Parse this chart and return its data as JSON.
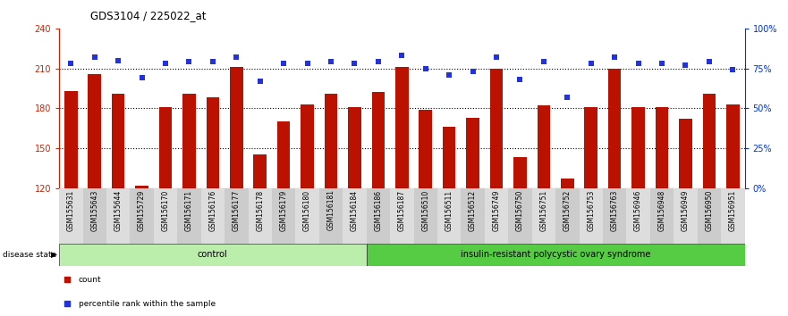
{
  "title": "GDS3104 / 225022_at",
  "samples": [
    "GSM155631",
    "GSM155643",
    "GSM155644",
    "GSM155729",
    "GSM156170",
    "GSM156171",
    "GSM156176",
    "GSM156177",
    "GSM156178",
    "GSM156179",
    "GSM156180",
    "GSM156181",
    "GSM156184",
    "GSM156186",
    "GSM156187",
    "GSM156510",
    "GSM156511",
    "GSM156512",
    "GSM156749",
    "GSM156750",
    "GSM156751",
    "GSM156752",
    "GSM156753",
    "GSM156763",
    "GSM156946",
    "GSM156948",
    "GSM156949",
    "GSM156950",
    "GSM156951"
  ],
  "bar_values": [
    193,
    206,
    191,
    122,
    181,
    191,
    188,
    211,
    145,
    170,
    183,
    191,
    181,
    192,
    211,
    179,
    166,
    173,
    210,
    143,
    182,
    127,
    181,
    210,
    181,
    181,
    172,
    191,
    183
  ],
  "dot_pct": [
    78,
    82,
    80,
    69,
    78,
    79,
    79,
    82,
    67,
    78,
    78,
    79,
    78,
    79,
    83,
    75,
    71,
    73,
    82,
    68,
    79,
    57,
    78,
    82,
    78,
    78,
    77,
    79,
    74
  ],
  "group_sizes": [
    13,
    16
  ],
  "group_labels": [
    "control",
    "insulin-resistant polycystic ovary syndrome"
  ],
  "group_color_0": "#BBEEAA",
  "group_color_1": "#55CC44",
  "bar_color": "#BB1100",
  "dot_color": "#2233DD",
  "ylim_left": [
    120,
    240
  ],
  "ylim_right": [
    0,
    100
  ],
  "yticks_left": [
    120,
    150,
    180,
    210,
    240
  ],
  "yticks_right": [
    0,
    25,
    50,
    75,
    100
  ],
  "ytick_labels_right": [
    "0%",
    "25%",
    "50%",
    "75%",
    "100%"
  ],
  "hlines": [
    150,
    180,
    210
  ],
  "left_tick_color": "#CC2200",
  "right_tick_color": "#0033CC",
  "legend_labels": [
    "count",
    "percentile rank within the sample"
  ],
  "legend_colors": [
    "#BB1100",
    "#2233DD"
  ],
  "disease_state_label": "disease state"
}
